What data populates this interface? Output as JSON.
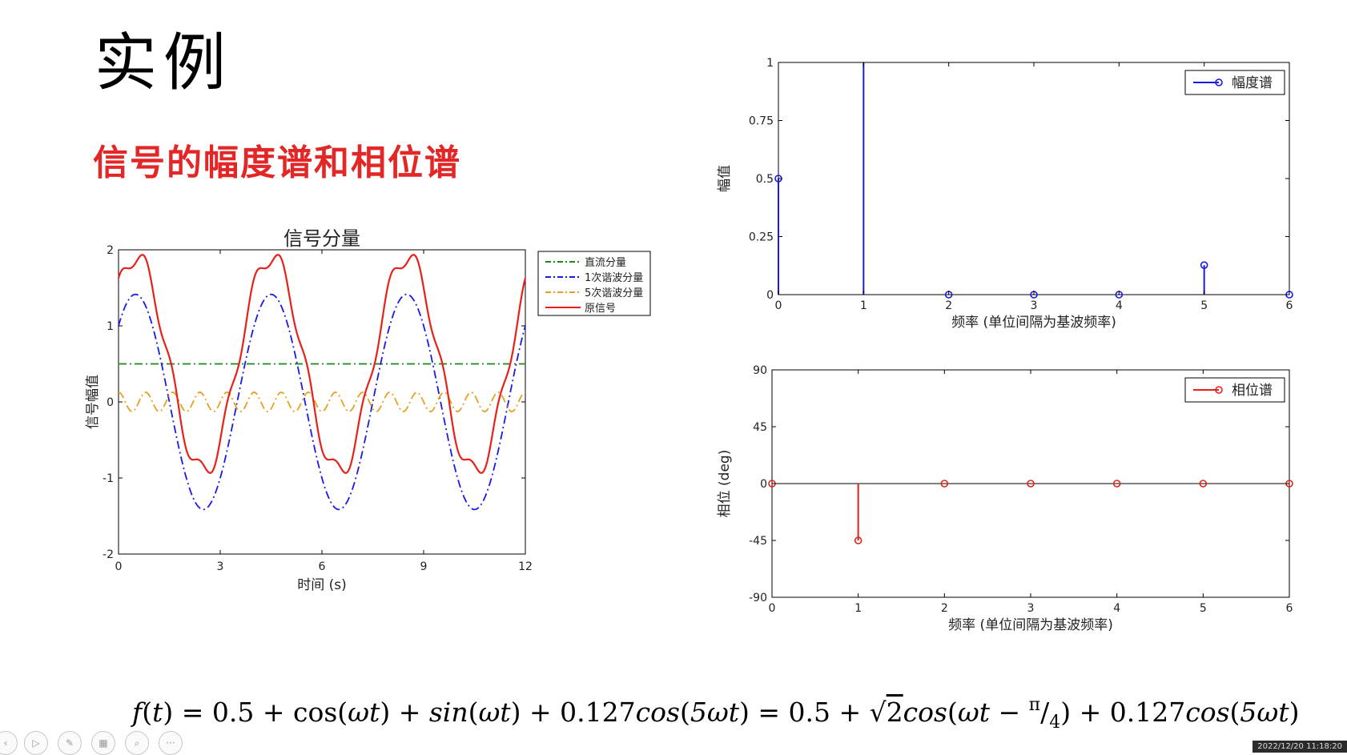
{
  "slide": {
    "title": "实例",
    "subtitle": "信号的幅度谱和相位谱",
    "formula": {
      "f": "f",
      "t": "t",
      "omega_t": "ωt",
      "five_omega_t": "5ωt",
      "const": "0.5",
      "cos": "cos",
      "sin": "sin",
      "coef": "0.127",
      "sqrt2": "2",
      "pi": "π",
      "four": "4"
    },
    "timestamp": "2022/12/20 11:18:20"
  },
  "chart_data": [
    {
      "type": "line",
      "title": "信号分量",
      "xlabel": "时间 (s)",
      "ylabel": "信号幅值",
      "xlim": [
        0,
        12
      ],
      "ylim": [
        -2,
        2
      ],
      "xticks": [
        "0",
        "3",
        "6",
        "9",
        "12"
      ],
      "yticks": [
        "2",
        "1",
        "0",
        "-1",
        "-2"
      ],
      "period": 4,
      "legend_position": "outside-right-top",
      "series": [
        {
          "name": "直流分量",
          "formula": "0.5",
          "color": "#1a8a1a",
          "style": "dash-dot"
        },
        {
          "name": "1次谐波分量",
          "formula": "cos(ωt)+sin(ωt)",
          "color": "#1a1ae6",
          "style": "dash-dot"
        },
        {
          "name": "5次谐波分量",
          "formula": "0.127cos(5ωt)",
          "color": "#e8a020",
          "style": "dash-dot"
        },
        {
          "name": "原信号",
          "formula": "0.5+cos(ωt)+sin(ωt)+0.127cos(5ωt)",
          "color": "#e8201a",
          "style": "solid"
        }
      ]
    },
    {
      "type": "stem",
      "xlabel": "频率 (单位间隔为基波频率)",
      "ylabel": "幅值",
      "xlim": [
        0,
        6
      ],
      "ylim": [
        0,
        1
      ],
      "xticks": [
        "0",
        "1",
        "2",
        "3",
        "4",
        "5",
        "6"
      ],
      "yticks": [
        "1",
        "0.75",
        "0.5",
        "0.25",
        "0"
      ],
      "legend_position": "top-right",
      "series": [
        {
          "name": "幅度谱",
          "color": "#1a1ae6",
          "x": [
            0,
            1,
            2,
            3,
            4,
            5,
            6
          ],
          "y": [
            0.5,
            1.414,
            0,
            0,
            0,
            0.127,
            0
          ]
        }
      ]
    },
    {
      "type": "stem",
      "xlabel": "频率 (单位间隔为基波频率)",
      "ylabel": "相位 (deg)",
      "xlim": [
        0,
        6
      ],
      "ylim": [
        -90,
        90
      ],
      "xticks": [
        "0",
        "1",
        "2",
        "3",
        "4",
        "5",
        "6"
      ],
      "yticks": [
        "90",
        "45",
        "0",
        "-45",
        "-90"
      ],
      "legend_position": "top-right",
      "series": [
        {
          "name": "相位谱",
          "color": "#e8201a",
          "x": [
            0,
            1,
            2,
            3,
            4,
            5,
            6
          ],
          "y": [
            0,
            -45,
            0,
            0,
            0,
            0,
            0
          ]
        }
      ]
    }
  ]
}
